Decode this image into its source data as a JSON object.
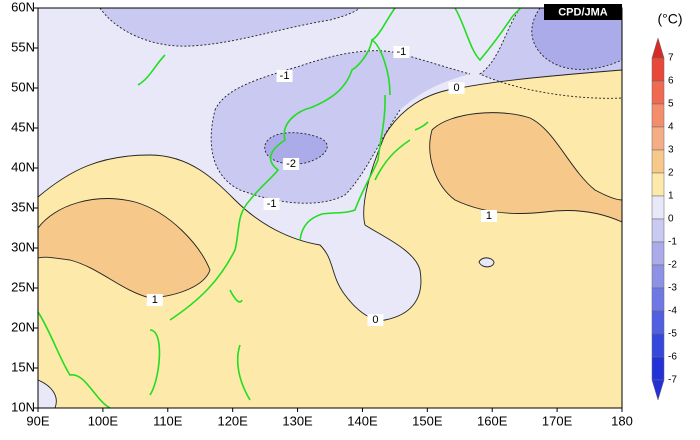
{
  "map": {
    "badge": "CPD/JMA",
    "unit": "(°C)",
    "lat_labels": [
      "60N",
      "55N",
      "50N",
      "45N",
      "40N",
      "35N",
      "30N",
      "25N",
      "20N",
      "15N",
      "10N"
    ],
    "lon_labels": [
      "90E",
      "100E",
      "110E",
      "120E",
      "130E",
      "140E",
      "150E",
      "160E",
      "170E",
      "180"
    ],
    "contour_labels": [
      {
        "text": "-1",
        "lon": 128,
        "lat": 51.5
      },
      {
        "text": "-1",
        "lon": 146,
        "lat": 54.5
      },
      {
        "text": "0",
        "lon": 154.5,
        "lat": 50
      },
      {
        "text": "-2",
        "lon": 129,
        "lat": 40.5
      },
      {
        "text": "-1",
        "lon": 126,
        "lat": 35.5
      },
      {
        "text": "1",
        "lon": 108,
        "lat": 23.5
      },
      {
        "text": "1",
        "lon": 159.5,
        "lat": 34
      },
      {
        "text": "0",
        "lon": 142,
        "lat": 21
      }
    ]
  },
  "colorbar": {
    "labels": [
      "7",
      "6",
      "5",
      "4",
      "3",
      "2",
      "1",
      "0",
      "-1",
      "-2",
      "-3",
      "-4",
      "-5",
      "-6",
      "-7"
    ]
  }
}
